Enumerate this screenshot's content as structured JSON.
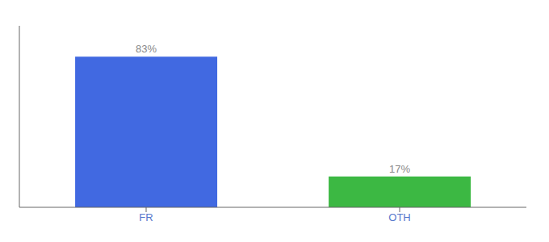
{
  "chart_data": {
    "type": "bar",
    "categories": [
      "FR",
      "OTH"
    ],
    "values": [
      83,
      17
    ],
    "value_labels": [
      "83%",
      "17%"
    ],
    "colors": [
      "#4169e1",
      "#3cb843"
    ],
    "ylim": [
      0,
      100
    ],
    "data_labels": true,
    "tick_labels": "x",
    "grid": false
  }
}
